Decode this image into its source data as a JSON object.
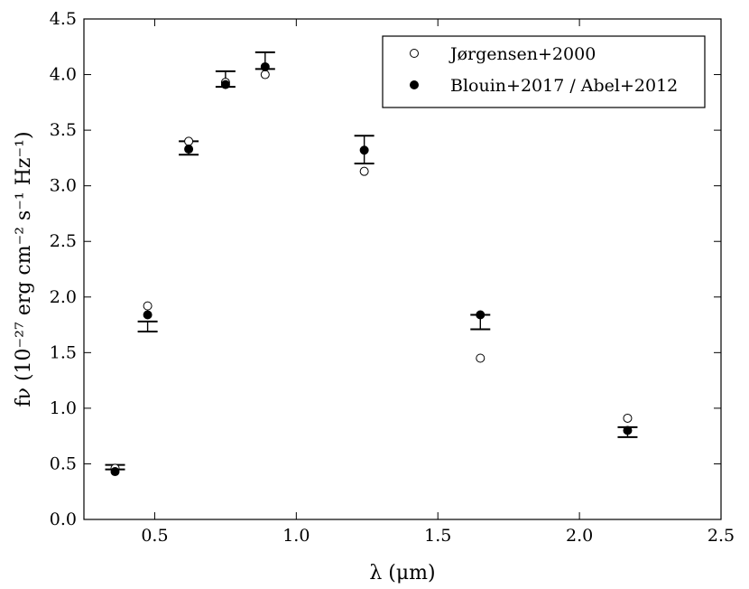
{
  "chart_data": {
    "type": "scatter",
    "xlabel": "λ (μm)",
    "ylabel": "fν (10⁻²⁷ erg cm⁻² s⁻¹ Hz⁻¹)",
    "xlim": [
      0.25,
      2.5
    ],
    "ylim": [
      0.0,
      4.5
    ],
    "xticks": [
      "0.5",
      "1.0",
      "1.5",
      "2.0",
      "2.5"
    ],
    "xtick_values": [
      0.5,
      1.0,
      1.5,
      2.0,
      2.5
    ],
    "yticks": [
      "0.0",
      "0.5",
      "1.0",
      "1.5",
      "2.0",
      "2.5",
      "3.0",
      "3.5",
      "4.0",
      "4.5"
    ],
    "ytick_values": [
      0.0,
      0.5,
      1.0,
      1.5,
      2.0,
      2.5,
      3.0,
      3.5,
      4.0,
      4.5
    ],
    "grid": false,
    "legend_position": "top-right",
    "series": [
      {
        "name": "Jørgensen+2000",
        "marker": "open-circle",
        "points": [
          {
            "x": 0.36,
            "y": 0.46
          },
          {
            "x": 0.475,
            "y": 1.92
          },
          {
            "x": 0.62,
            "y": 3.4
          },
          {
            "x": 0.75,
            "y": 3.93
          },
          {
            "x": 0.89,
            "y": 4.0
          },
          {
            "x": 1.24,
            "y": 3.13
          },
          {
            "x": 1.65,
            "y": 1.45
          },
          {
            "x": 2.17,
            "y": 0.91
          }
        ]
      },
      {
        "name": "Blouin+2017 / Abel+2012",
        "marker": "filled-circle",
        "points": [
          {
            "x": 0.36,
            "y": 0.43
          },
          {
            "x": 0.475,
            "y": 1.84
          },
          {
            "x": 0.62,
            "y": 3.33
          },
          {
            "x": 0.75,
            "y": 3.91
          },
          {
            "x": 0.89,
            "y": 4.07
          },
          {
            "x": 1.24,
            "y": 3.32
          },
          {
            "x": 1.65,
            "y": 1.84
          },
          {
            "x": 2.17,
            "y": 0.8
          }
        ]
      }
    ],
    "error_bars": [
      {
        "x": 0.36,
        "low": 0.45,
        "high": 0.49
      },
      {
        "x": 0.475,
        "low": 1.69,
        "high": 1.78
      },
      {
        "x": 0.62,
        "low": 3.28,
        "high": 3.4
      },
      {
        "x": 0.75,
        "low": 3.89,
        "high": 4.03
      },
      {
        "x": 0.89,
        "low": 4.05,
        "high": 4.2
      },
      {
        "x": 1.24,
        "low": 3.2,
        "high": 3.45
      },
      {
        "x": 1.65,
        "low": 1.71,
        "high": 1.84
      },
      {
        "x": 2.17,
        "low": 0.74,
        "high": 0.83
      }
    ]
  }
}
